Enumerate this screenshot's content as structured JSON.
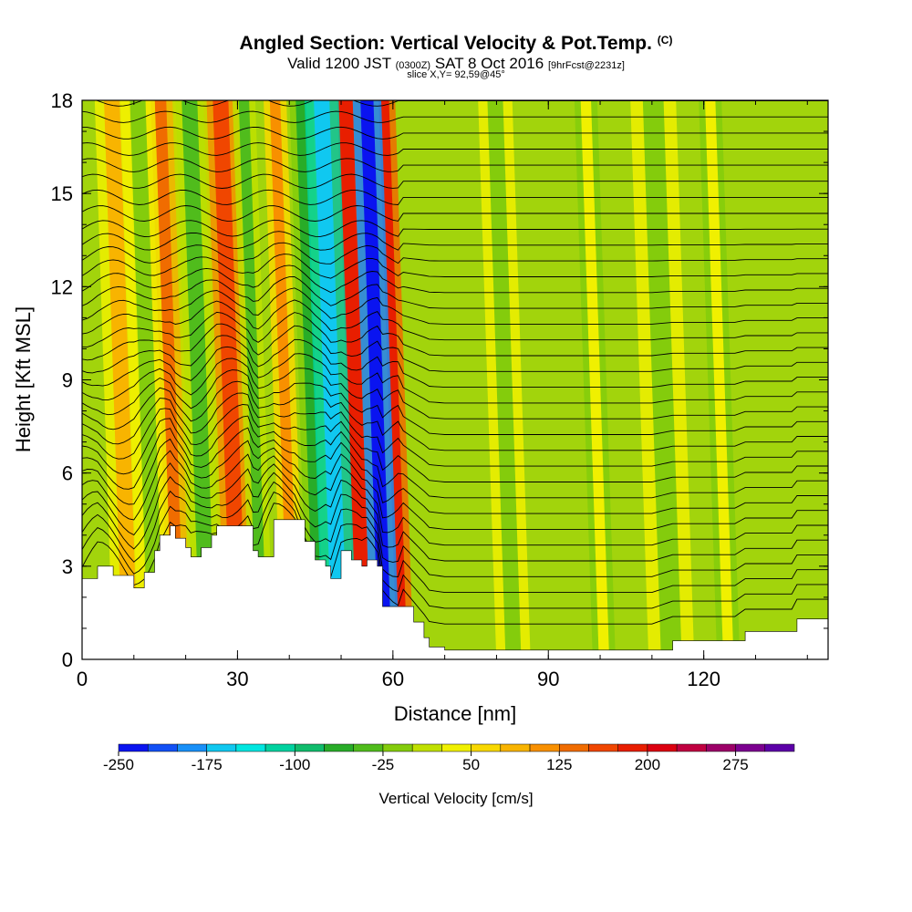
{
  "title": {
    "main": "Angled Section: Vertical Velocity & Pot.Temp.",
    "main_suffix": "(C)",
    "valid_prefix": "Valid 1200 JST",
    "valid_utc": "(0300Z)",
    "valid_date": "SAT 8 Oct 2016",
    "forecast_tag": "[9hrFcst@2231z]",
    "slice": "slice X,Y= 92,59@45°"
  },
  "chart_data": {
    "type": "heatmap",
    "xlabel": "Distance [nm]",
    "ylabel": "Height [Kft MSL]",
    "xlim": [
      0,
      144
    ],
    "ylim": [
      0,
      18
    ],
    "x_ticks": [
      0,
      30,
      60,
      90,
      120
    ],
    "y_ticks": [
      0,
      3,
      6,
      9,
      12,
      15,
      18
    ],
    "terrain_kft": [
      [
        0,
        2.6
      ],
      [
        3,
        3.0
      ],
      [
        6,
        2.7
      ],
      [
        10,
        2.3
      ],
      [
        12,
        2.8
      ],
      [
        14,
        3.5
      ],
      [
        15,
        4.0
      ],
      [
        17,
        4.3
      ],
      [
        18,
        3.9
      ],
      [
        20,
        3.6
      ],
      [
        21,
        3.3
      ],
      [
        23,
        3.6
      ],
      [
        25,
        4.0
      ],
      [
        26,
        4.3
      ],
      [
        32,
        4.3
      ],
      [
        33,
        3.5
      ],
      [
        34,
        3.3
      ],
      [
        37,
        4.5
      ],
      [
        41,
        4.5
      ],
      [
        43,
        3.8
      ],
      [
        45,
        3.2
      ],
      [
        47,
        3.0
      ],
      [
        48,
        2.6
      ],
      [
        50,
        3.5
      ],
      [
        52,
        3.2
      ],
      [
        54,
        3.0
      ],
      [
        55,
        3.2
      ],
      [
        57,
        3.0
      ],
      [
        58,
        1.7
      ],
      [
        62,
        1.7
      ],
      [
        64,
        1.2
      ],
      [
        66,
        0.7
      ],
      [
        67,
        0.4
      ],
      [
        70,
        0.3
      ],
      [
        80,
        0.3
      ],
      [
        90,
        0.3
      ],
      [
        100,
        0.3
      ],
      [
        110,
        0.3
      ],
      [
        114,
        0.6
      ],
      [
        126,
        0.6
      ],
      [
        128,
        0.9
      ],
      [
        137,
        0.9
      ],
      [
        138,
        1.3
      ],
      [
        144,
        1.3
      ]
    ],
    "updraft_bands": [
      {
        "x": 6,
        "w": 3,
        "value": 75
      },
      {
        "x": 15,
        "w": 3,
        "value": 125
      },
      {
        "x": 27,
        "w": 3,
        "value": 150
      },
      {
        "x": 38,
        "w": 2,
        "value": 100
      },
      {
        "x": 51,
        "w": 3,
        "value": 175
      },
      {
        "x": 59,
        "w": 2,
        "value": 175
      },
      {
        "x": 98,
        "w": 2,
        "value": 25
      },
      {
        "x": 122,
        "w": 2,
        "value": 25
      }
    ],
    "downdraft_bands": [
      {
        "x": 11,
        "w": 3,
        "value": -25
      },
      {
        "x": 21,
        "w": 3,
        "value": -50
      },
      {
        "x": 32,
        "w": 2,
        "value": -50
      },
      {
        "x": 43,
        "w": 2,
        "value": -75
      },
      {
        "x": 46.5,
        "w": 3,
        "value": -175
      },
      {
        "x": 55.5,
        "w": 2.5,
        "value": -250
      },
      {
        "x": 80,
        "w": 3,
        "value": -25
      },
      {
        "x": 110,
        "w": 4,
        "value": -25
      }
    ],
    "potential_temperature_contours_count": 34,
    "colorbar": {
      "label": "Vertical Velocity [cm/s]",
      "ticks": [
        "-250",
        "-175",
        "-100",
        "-25",
        "50",
        "125",
        "200",
        "275"
      ],
      "colors": [
        "#0a14f0",
        "#1250f5",
        "#1890f8",
        "#10c8f0",
        "#00e6e0",
        "#00d2a0",
        "#10bc6c",
        "#28ac28",
        "#50bc1c",
        "#84cc0c",
        "#c0e000",
        "#f0f000",
        "#f8d800",
        "#f8b400",
        "#f89000",
        "#f06c00",
        "#f04600",
        "#e81e00",
        "#dc0010",
        "#c00040",
        "#9c0068",
        "#7c0090",
        "#5c00a8"
      ]
    }
  }
}
